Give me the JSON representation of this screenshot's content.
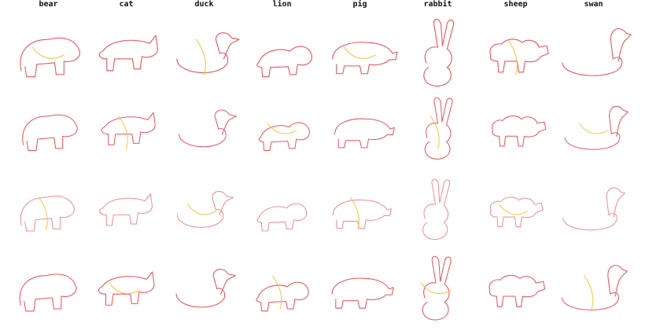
{
  "columns": [
    "bear",
    "cat",
    "duck",
    "lion",
    "pig",
    "rabbit",
    "sheep",
    "swan"
  ],
  "rows": 4,
  "colors": {
    "primary": "#e8555a",
    "secondary": "#f5c646",
    "light": "#f08a8a"
  }
}
